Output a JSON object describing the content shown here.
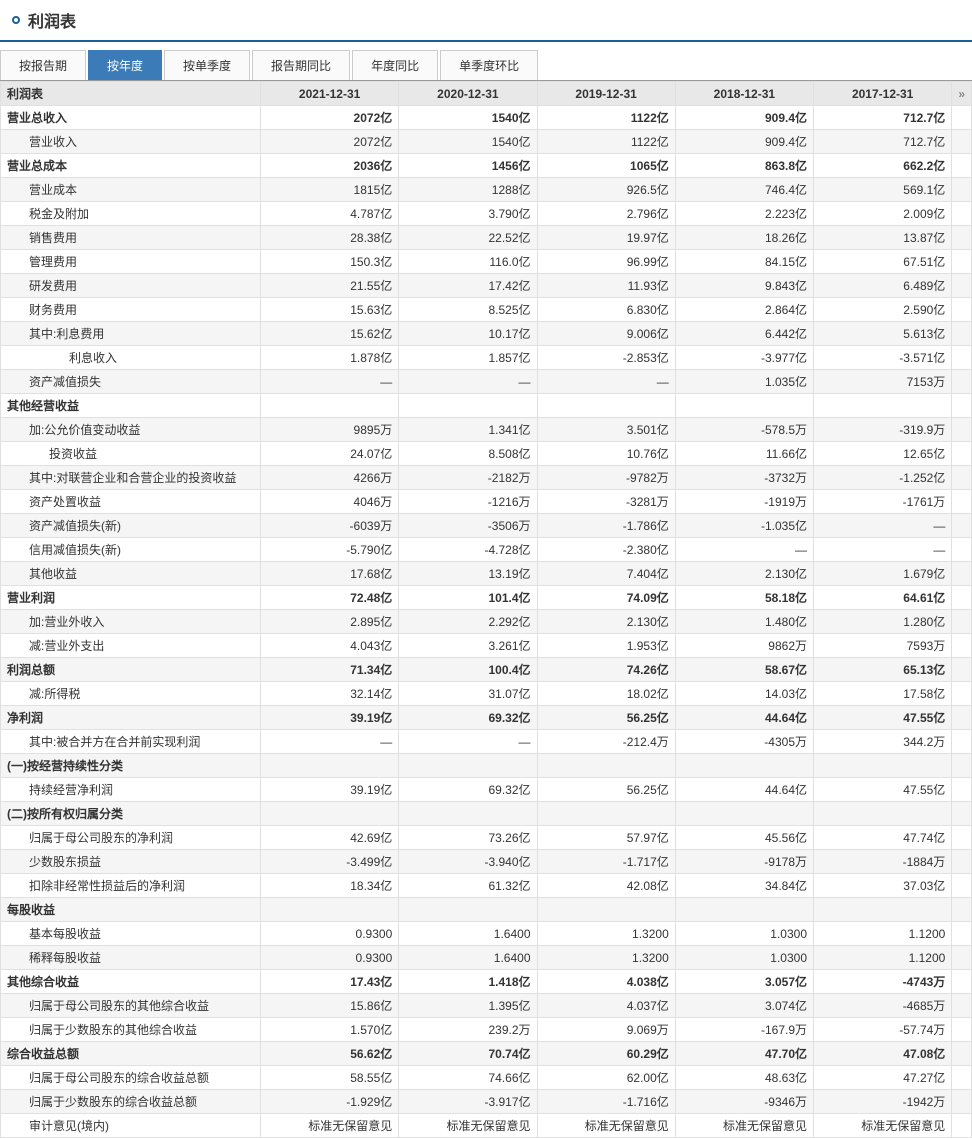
{
  "title": "利润表",
  "tabs": [
    "按报告期",
    "按年度",
    "按单季度",
    "报告期同比",
    "年度同比",
    "单季度环比"
  ],
  "activeTab": 1,
  "tableTitle": "利润表",
  "columns": [
    "2021-12-31",
    "2020-12-31",
    "2019-12-31",
    "2018-12-31",
    "2017-12-31"
  ],
  "rows": [
    {
      "l": "营业总收入",
      "b": 1,
      "i": 0,
      "v": [
        "2072亿",
        "1540亿",
        "1122亿",
        "909.4亿",
        "712.7亿"
      ]
    },
    {
      "l": "营业收入",
      "b": 0,
      "i": 1,
      "v": [
        "2072亿",
        "1540亿",
        "1122亿",
        "909.4亿",
        "712.7亿"
      ]
    },
    {
      "l": "营业总成本",
      "b": 1,
      "i": 0,
      "v": [
        "2036亿",
        "1456亿",
        "1065亿",
        "863.8亿",
        "662.2亿"
      ]
    },
    {
      "l": "营业成本",
      "b": 0,
      "i": 1,
      "v": [
        "1815亿",
        "1288亿",
        "926.5亿",
        "746.4亿",
        "569.1亿"
      ]
    },
    {
      "l": "税金及附加",
      "b": 0,
      "i": 1,
      "v": [
        "4.787亿",
        "3.790亿",
        "2.796亿",
        "2.223亿",
        "2.009亿"
      ]
    },
    {
      "l": "销售费用",
      "b": 0,
      "i": 1,
      "v": [
        "28.38亿",
        "22.52亿",
        "19.97亿",
        "18.26亿",
        "13.87亿"
      ]
    },
    {
      "l": "管理费用",
      "b": 0,
      "i": 1,
      "v": [
        "150.3亿",
        "116.0亿",
        "96.99亿",
        "84.15亿",
        "67.51亿"
      ]
    },
    {
      "l": "研发费用",
      "b": 0,
      "i": 1,
      "v": [
        "21.55亿",
        "17.42亿",
        "11.93亿",
        "9.843亿",
        "6.489亿"
      ]
    },
    {
      "l": "财务费用",
      "b": 0,
      "i": 1,
      "v": [
        "15.63亿",
        "8.525亿",
        "6.830亿",
        "2.864亿",
        "2.590亿"
      ]
    },
    {
      "l": "其中:利息费用",
      "b": 0,
      "i": 1,
      "v": [
        "15.62亿",
        "10.17亿",
        "9.006亿",
        "6.442亿",
        "5.613亿"
      ]
    },
    {
      "l": "利息收入",
      "b": 0,
      "i": 3,
      "v": [
        "1.878亿",
        "1.857亿",
        "-2.853亿",
        "-3.977亿",
        "-3.571亿"
      ]
    },
    {
      "l": "资产减值损失",
      "b": 0,
      "i": 1,
      "v": [
        "—",
        "—",
        "—",
        "1.035亿",
        "7153万"
      ]
    },
    {
      "l": "其他经营收益",
      "b": 1,
      "i": 0,
      "v": [
        "",
        "",
        "",
        "",
        ""
      ]
    },
    {
      "l": "加:公允价值变动收益",
      "b": 0,
      "i": 1,
      "v": [
        "9895万",
        "1.341亿",
        "3.501亿",
        "-578.5万",
        "-319.9万"
      ]
    },
    {
      "l": "投资收益",
      "b": 0,
      "i": 2,
      "v": [
        "24.07亿",
        "8.508亿",
        "10.76亿",
        "11.66亿",
        "12.65亿"
      ]
    },
    {
      "l": "其中:对联营企业和合营企业的投资收益",
      "b": 0,
      "i": 1,
      "v": [
        "4266万",
        "-2182万",
        "-9782万",
        "-3732万",
        "-1.252亿"
      ]
    },
    {
      "l": "资产处置收益",
      "b": 0,
      "i": 1,
      "v": [
        "4046万",
        "-1216万",
        "-3281万",
        "-1919万",
        "-1761万"
      ]
    },
    {
      "l": "资产减值损失(新)",
      "b": 0,
      "i": 1,
      "v": [
        "-6039万",
        "-3506万",
        "-1.786亿",
        "-1.035亿",
        "—"
      ]
    },
    {
      "l": "信用减值损失(新)",
      "b": 0,
      "i": 1,
      "v": [
        "-5.790亿",
        "-4.728亿",
        "-2.380亿",
        "—",
        "—"
      ]
    },
    {
      "l": "其他收益",
      "b": 0,
      "i": 1,
      "v": [
        "17.68亿",
        "13.19亿",
        "7.404亿",
        "2.130亿",
        "1.679亿"
      ]
    },
    {
      "l": "营业利润",
      "b": 1,
      "i": 0,
      "v": [
        "72.48亿",
        "101.4亿",
        "74.09亿",
        "58.18亿",
        "64.61亿"
      ]
    },
    {
      "l": "加:营业外收入",
      "b": 0,
      "i": 1,
      "v": [
        "2.895亿",
        "2.292亿",
        "2.130亿",
        "1.480亿",
        "1.280亿"
      ]
    },
    {
      "l": "减:营业外支出",
      "b": 0,
      "i": 1,
      "v": [
        "4.043亿",
        "3.261亿",
        "1.953亿",
        "9862万",
        "7593万"
      ]
    },
    {
      "l": "利润总额",
      "b": 1,
      "i": 0,
      "v": [
        "71.34亿",
        "100.4亿",
        "74.26亿",
        "58.67亿",
        "65.13亿"
      ]
    },
    {
      "l": "减:所得税",
      "b": 0,
      "i": 1,
      "v": [
        "32.14亿",
        "31.07亿",
        "18.02亿",
        "14.03亿",
        "17.58亿"
      ]
    },
    {
      "l": "净利润",
      "b": 1,
      "i": 0,
      "v": [
        "39.19亿",
        "69.32亿",
        "56.25亿",
        "44.64亿",
        "47.55亿"
      ]
    },
    {
      "l": "其中:被合并方在合并前实现利润",
      "b": 0,
      "i": 1,
      "v": [
        "—",
        "—",
        "-212.4万",
        "-4305万",
        "344.2万"
      ]
    },
    {
      "l": "(一)按经营持续性分类",
      "b": 1,
      "i": 0,
      "v": [
        "",
        "",
        "",
        "",
        ""
      ]
    },
    {
      "l": "持续经营净利润",
      "b": 0,
      "i": 1,
      "v": [
        "39.19亿",
        "69.32亿",
        "56.25亿",
        "44.64亿",
        "47.55亿"
      ]
    },
    {
      "l": "(二)按所有权归属分类",
      "b": 1,
      "i": 0,
      "v": [
        "",
        "",
        "",
        "",
        ""
      ]
    },
    {
      "l": "归属于母公司股东的净利润",
      "b": 0,
      "i": 1,
      "v": [
        "42.69亿",
        "73.26亿",
        "57.97亿",
        "45.56亿",
        "47.74亿"
      ]
    },
    {
      "l": "少数股东损益",
      "b": 0,
      "i": 1,
      "v": [
        "-3.499亿",
        "-3.940亿",
        "-1.717亿",
        "-9178万",
        "-1884万"
      ]
    },
    {
      "l": "扣除非经常性损益后的净利润",
      "b": 0,
      "i": 1,
      "v": [
        "18.34亿",
        "61.32亿",
        "42.08亿",
        "34.84亿",
        "37.03亿"
      ]
    },
    {
      "l": "每股收益",
      "b": 1,
      "i": 0,
      "v": [
        "",
        "",
        "",
        "",
        ""
      ]
    },
    {
      "l": "基本每股收益",
      "b": 0,
      "i": 1,
      "v": [
        "0.9300",
        "1.6400",
        "1.3200",
        "1.0300",
        "1.1200"
      ]
    },
    {
      "l": "稀释每股收益",
      "b": 0,
      "i": 1,
      "v": [
        "0.9300",
        "1.6400",
        "1.3200",
        "1.0300",
        "1.1200"
      ]
    },
    {
      "l": "其他综合收益",
      "b": 1,
      "i": 0,
      "v": [
        "17.43亿",
        "1.418亿",
        "4.038亿",
        "3.057亿",
        "-4743万"
      ]
    },
    {
      "l": "归属于母公司股东的其他综合收益",
      "b": 0,
      "i": 1,
      "v": [
        "15.86亿",
        "1.395亿",
        "4.037亿",
        "3.074亿",
        "-4685万"
      ]
    },
    {
      "l": "归属于少数股东的其他综合收益",
      "b": 0,
      "i": 1,
      "v": [
        "1.570亿",
        "239.2万",
        "9.069万",
        "-167.9万",
        "-57.74万"
      ]
    },
    {
      "l": "综合收益总额",
      "b": 1,
      "i": 0,
      "v": [
        "56.62亿",
        "70.74亿",
        "60.29亿",
        "47.70亿",
        "47.08亿"
      ]
    },
    {
      "l": "归属于母公司股东的综合收益总额",
      "b": 0,
      "i": 1,
      "v": [
        "58.55亿",
        "74.66亿",
        "62.00亿",
        "48.63亿",
        "47.27亿"
      ]
    },
    {
      "l": "归属于少数股东的综合收益总额",
      "b": 0,
      "i": 1,
      "v": [
        "-1.929亿",
        "-3.917亿",
        "-1.716亿",
        "-9346万",
        "-1942万"
      ]
    },
    {
      "l": "审计意见(境内)",
      "b": 0,
      "i": 1,
      "v": [
        "标准无保留意见",
        "标准无保留意见",
        "标准无保留意见",
        "标准无保留意见",
        "标准无保留意见"
      ]
    }
  ],
  "scrollArrow": "»"
}
